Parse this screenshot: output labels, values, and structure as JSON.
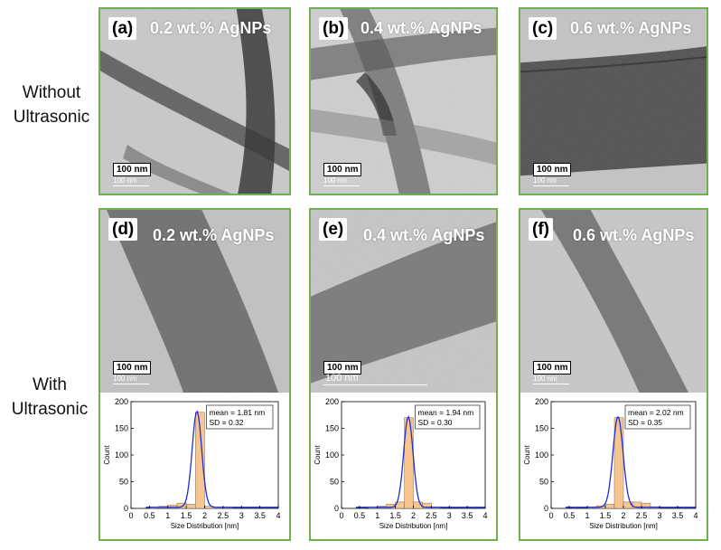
{
  "row_labels": {
    "top": [
      "Without",
      "Ultrasonic"
    ],
    "bottom": [
      "With",
      "Ultrasonic"
    ]
  },
  "colors": {
    "panel_border": "#6fb04f",
    "bar_fill": "#f7c58f",
    "fit_line": "#1f2fd0"
  },
  "panels": [
    {
      "id": "a",
      "tag": "(a)",
      "caption": "0.2 wt.% AgNPs",
      "scale_bar": "100 nm",
      "scale_sub": "100 nm"
    },
    {
      "id": "b",
      "tag": "(b)",
      "caption": "0.4 wt.% AgNPs",
      "scale_bar": "100 nm",
      "scale_sub": "100 nm"
    },
    {
      "id": "c",
      "tag": "(c)",
      "caption": "0.6 wt.% AgNPs",
      "scale_bar": "100 nm",
      "scale_sub": "100 nm"
    },
    {
      "id": "d",
      "tag": "(d)",
      "caption": "0.2 wt.% AgNPs",
      "scale_bar": "100 nm",
      "scale_sub": "100 nm"
    },
    {
      "id": "e",
      "tag": "(e)",
      "caption": "0.4 wt.% AgNPs",
      "scale_bar": "100 nm",
      "scale_sub": "100 nm"
    },
    {
      "id": "f",
      "tag": "(f)",
      "caption": "0.6 wt.% AgNPs",
      "scale_bar": "100 nm",
      "scale_sub": "100 nm"
    }
  ],
  "chart_data": [
    {
      "type": "bar",
      "panel": "d",
      "xlabel": "Size Distribution [nm]",
      "ylabel": "Count",
      "xlim": [
        0,
        4
      ],
      "ylim": [
        0,
        200
      ],
      "xticks": [
        "0",
        "0.5",
        "1",
        "1.5",
        "2",
        "2.5",
        "3",
        "3.5",
        "4"
      ],
      "yticks": [
        "0",
        "50",
        "100",
        "150",
        "200"
      ],
      "annotation": [
        "mean = 1.81 nm",
        "SD = 0.32"
      ],
      "bin_width": 0.25,
      "bins": [
        0.5,
        0.75,
        1.0,
        1.25,
        1.5,
        1.75,
        2.0,
        2.25,
        2.5
      ],
      "values": [
        2,
        4,
        6,
        10,
        8,
        180,
        4,
        2,
        1
      ],
      "fit_mean": 1.79,
      "fit_sd": 0.13,
      "fit_peak": 180
    },
    {
      "type": "bar",
      "panel": "e",
      "xlabel": "Size Distribution [nm]",
      "ylabel": "Count",
      "xlim": [
        0,
        4
      ],
      "ylim": [
        0,
        200
      ],
      "xticks": [
        "0",
        "0.5",
        "1",
        "1.5",
        "2",
        "2.5",
        "3",
        "3.5",
        "4"
      ],
      "yticks": [
        "0",
        "50",
        "100",
        "150",
        "200"
      ],
      "annotation": [
        "mean = 1.94 nm",
        "SD = 0.30"
      ],
      "bin_width": 0.25,
      "bins": [
        0.75,
        1.0,
        1.25,
        1.5,
        1.75,
        2.0,
        2.25,
        2.5
      ],
      "values": [
        2,
        4,
        8,
        12,
        170,
        12,
        10,
        2
      ],
      "fit_mean": 1.86,
      "fit_sd": 0.13,
      "fit_peak": 170
    },
    {
      "type": "bar",
      "panel": "f",
      "xlabel": "Size Distribution [nm]",
      "ylabel": "Count",
      "xlim": [
        0,
        4
      ],
      "ylim": [
        0,
        200
      ],
      "xticks": [
        "0",
        "0.5",
        "1",
        "1.5",
        "2",
        "2.5",
        "3",
        "3.5",
        "4"
      ],
      "yticks": [
        "0",
        "50",
        "100",
        "150",
        "200"
      ],
      "annotation": [
        "mean = 2.02 nm",
        "SD = 0.35"
      ],
      "bin_width": 0.25,
      "bins": [
        1.0,
        1.25,
        1.5,
        1.75,
        2.0,
        2.25,
        2.5,
        2.75
      ],
      "values": [
        2,
        5,
        8,
        170,
        12,
        12,
        10,
        3
      ],
      "fit_mean": 1.85,
      "fit_sd": 0.14,
      "fit_peak": 170
    }
  ]
}
